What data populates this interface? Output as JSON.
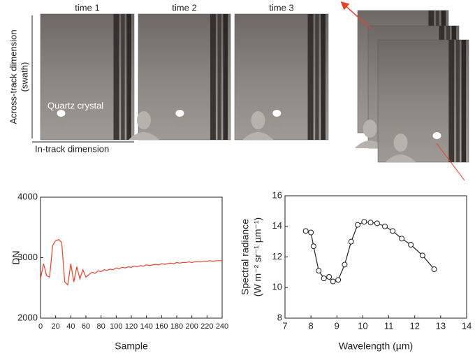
{
  "figure": {
    "time_labels": [
      "time 1",
      "time 2",
      "time 3"
    ],
    "quartz_label": "Quartz crystal",
    "across_track_label": [
      "Across-track dimension",
      "(swath)"
    ],
    "in_track_label": "In-track dimension"
  },
  "chart_data": [
    {
      "type": "line",
      "x_label": "Sample",
      "y_label": "DN",
      "color": "#e8412c",
      "x": [
        0,
        4,
        8,
        12,
        16,
        20,
        24,
        28,
        32,
        36,
        40,
        44,
        48,
        52,
        56,
        60,
        64,
        68,
        72,
        76,
        80,
        84,
        88,
        92,
        96,
        100,
        104,
        108,
        112,
        116,
        120,
        124,
        128,
        132,
        136,
        140,
        144,
        148,
        152,
        156,
        160,
        164,
        168,
        172,
        176,
        180,
        184,
        188,
        192,
        196,
        200,
        204,
        208,
        212,
        216,
        220,
        224,
        228,
        232,
        236,
        240
      ],
      "values": [
        2650,
        2900,
        2700,
        2680,
        3200,
        3280,
        3300,
        3250,
        2600,
        2550,
        2900,
        2600,
        2850,
        2650,
        2800,
        2680,
        2720,
        2760,
        2740,
        2780,
        2770,
        2800,
        2790,
        2810,
        2800,
        2830,
        2820,
        2840,
        2830,
        2850,
        2840,
        2860,
        2850,
        2870,
        2860,
        2880,
        2870,
        2880,
        2890,
        2880,
        2900,
        2890,
        2900,
        2910,
        2900,
        2920,
        2910,
        2920,
        2920,
        2930,
        2920,
        2930,
        2940,
        2930,
        2940,
        2940,
        2950,
        2940,
        2950,
        2950,
        2950
      ],
      "xlim": [
        0,
        240
      ],
      "ylim": [
        2000,
        4000
      ],
      "xticks": [
        0,
        20,
        40,
        60,
        80,
        100,
        120,
        140,
        160,
        180,
        200,
        220,
        240
      ],
      "yticks": [
        2000,
        3000,
        4000
      ]
    },
    {
      "type": "line",
      "markers": "open-circle",
      "x_label": "Wavelength (µm)",
      "y_label": [
        "Spectral radiance",
        "(W m⁻² sr⁻¹ µm⁻¹)"
      ],
      "color": "#222222",
      "x": [
        7.8,
        8.0,
        8.1,
        8.3,
        8.5,
        8.7,
        8.85,
        9.05,
        9.3,
        9.55,
        9.8,
        10.05,
        10.3,
        10.55,
        10.85,
        11.15,
        11.5,
        11.85,
        12.3,
        12.75
      ],
      "values": [
        13.7,
        13.6,
        12.7,
        11.1,
        10.6,
        10.7,
        10.4,
        10.5,
        11.5,
        13.0,
        14.1,
        14.3,
        14.25,
        14.2,
        14.0,
        13.7,
        13.2,
        12.8,
        12.1,
        11.2
      ],
      "xlim": [
        7,
        14
      ],
      "ylim": [
        8,
        16
      ],
      "xticks": [
        7,
        8,
        9,
        10,
        11,
        12,
        13,
        14
      ],
      "yticks": [
        8,
        10,
        12,
        14,
        16
      ]
    }
  ]
}
